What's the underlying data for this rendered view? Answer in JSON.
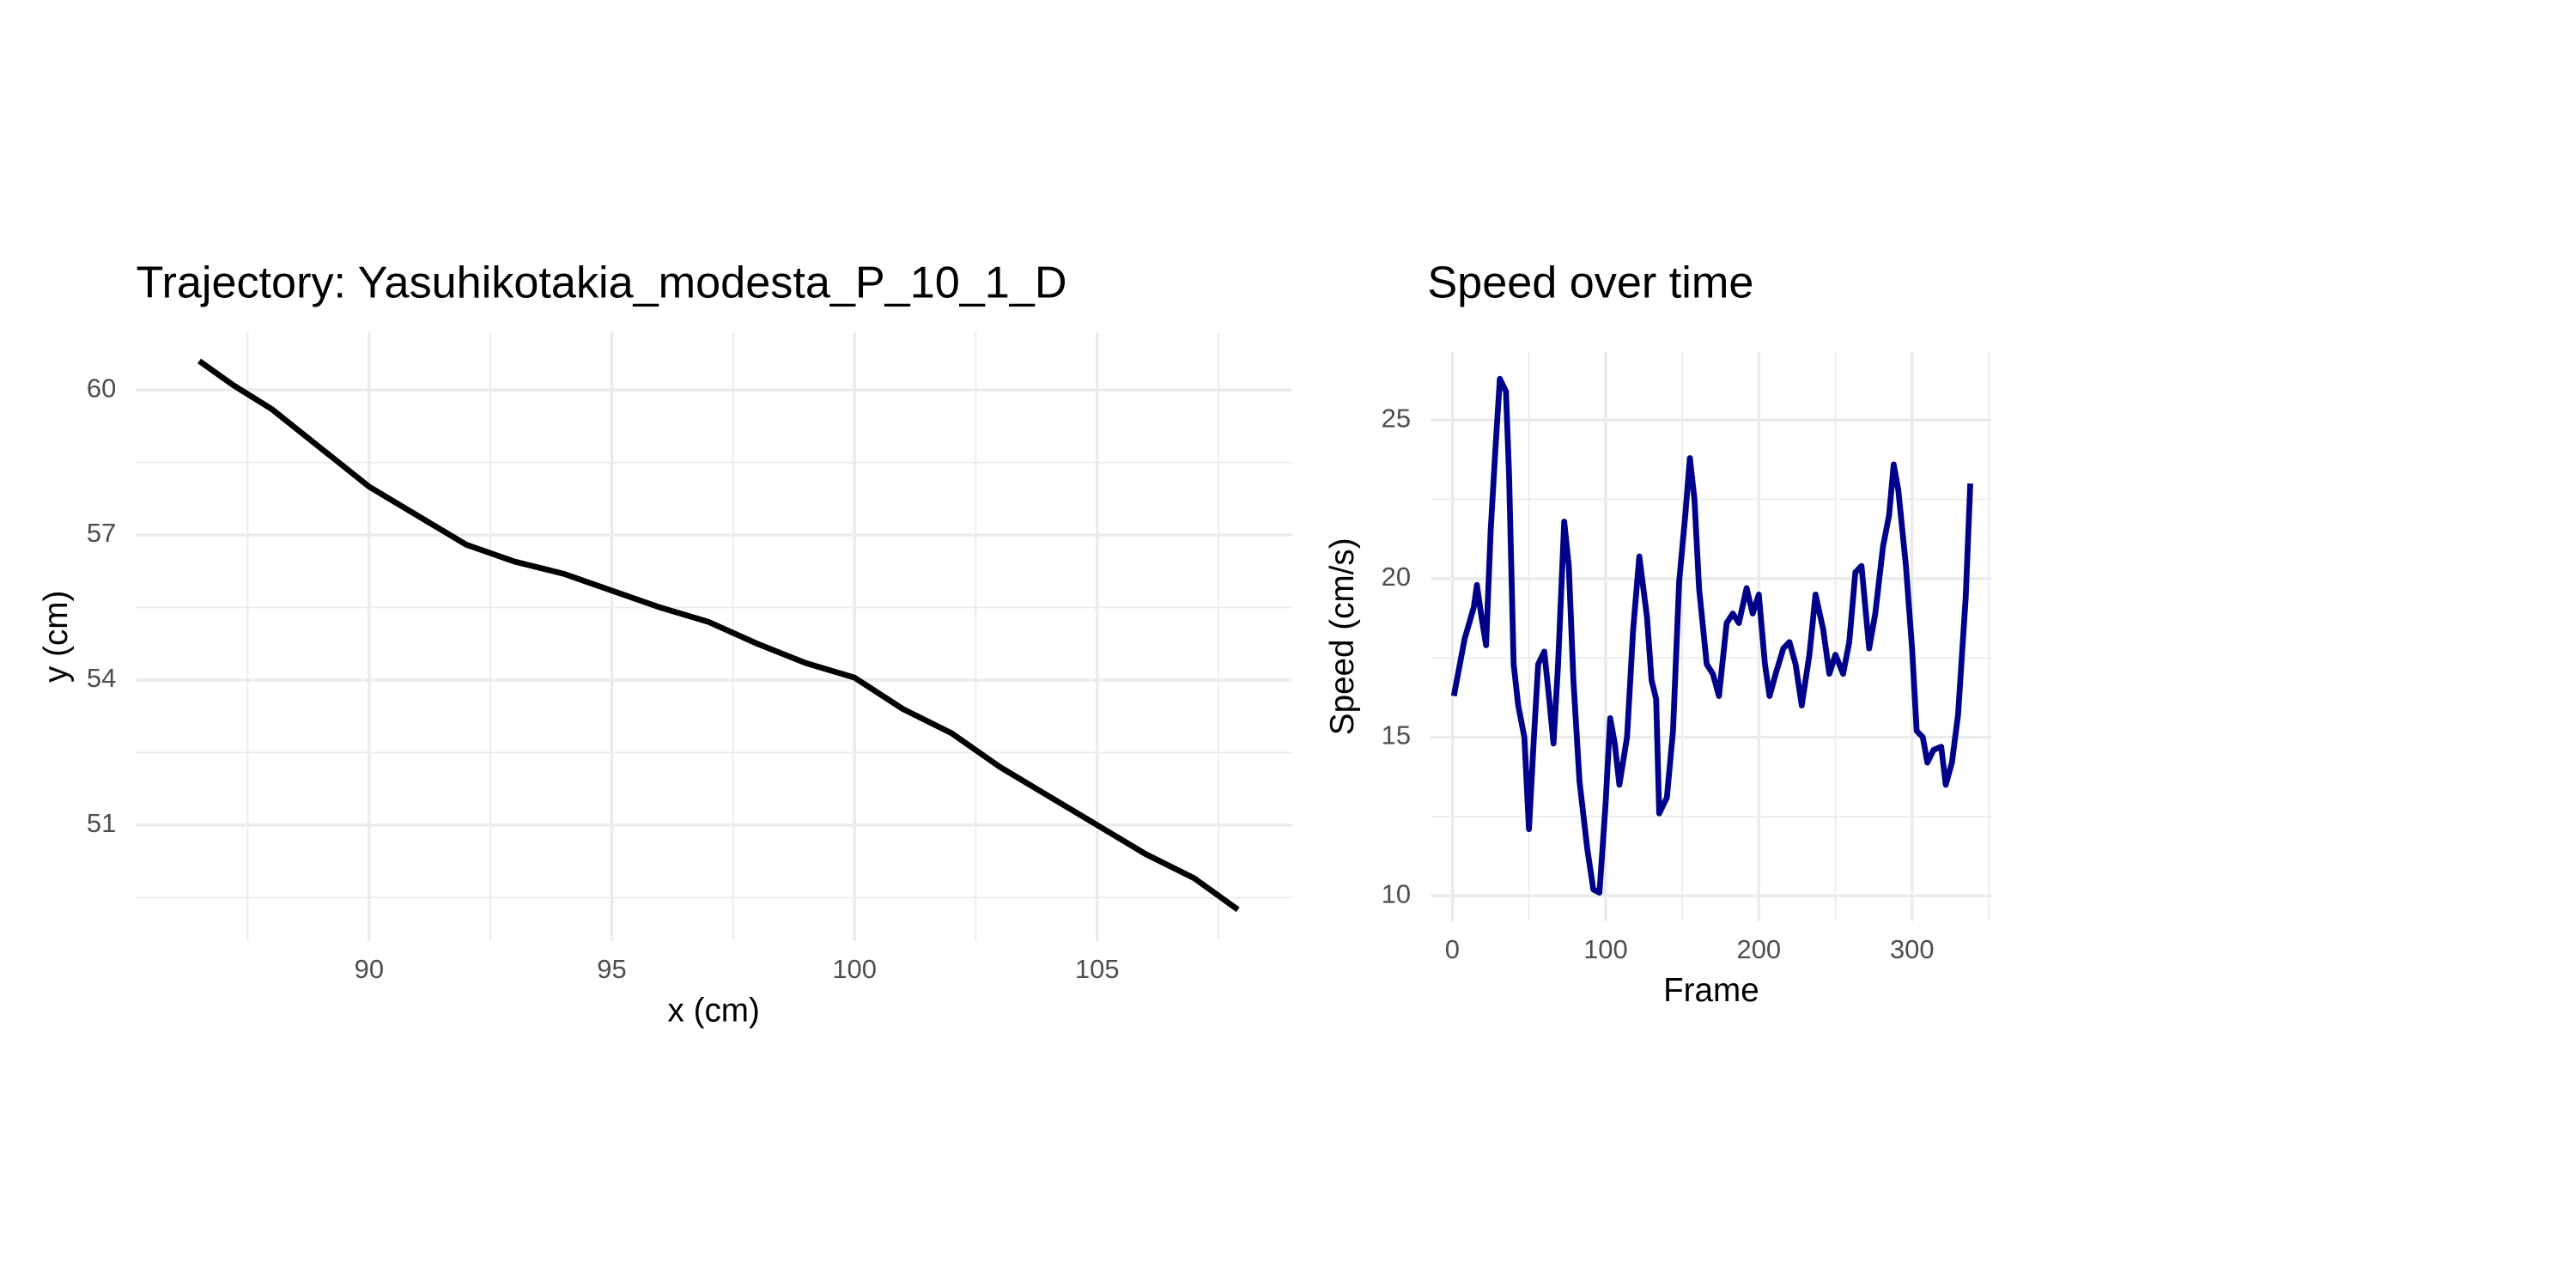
{
  "chart_data": [
    {
      "type": "line",
      "title": "Trajectory: Yasuhikotakia_modesta_P_10_1_D",
      "x_label": "x (cm)",
      "y_label": "y (cm)",
      "x": [
        86.5,
        87.2,
        88,
        89,
        90,
        91,
        92,
        93,
        94,
        95,
        96,
        97,
        98,
        99,
        100,
        101,
        102,
        103,
        104,
        105,
        106,
        107,
        107.9
      ],
      "series": [
        {
          "color": "#000000",
          "values": [
            60.6,
            60.1,
            59.6,
            58.8,
            58.0,
            57.4,
            56.8,
            56.45,
            56.2,
            55.85,
            55.5,
            55.2,
            54.75,
            54.35,
            54.05,
            53.4,
            52.9,
            52.2,
            51.6,
            51.0,
            50.4,
            49.9,
            49.25
          ]
        }
      ],
      "xlim": [
        85.2,
        109.0
      ],
      "xticks": [
        90,
        95,
        100,
        105
      ],
      "ylim": [
        48.6,
        61.2
      ],
      "yticks": [
        51,
        54,
        57,
        60
      ],
      "grid": true
    },
    {
      "type": "line",
      "title": "Speed over time",
      "x_label": "Frame",
      "y_label": "Speed (cm/s)",
      "x": [
        1,
        8,
        14,
        16,
        19,
        22,
        25,
        28,
        31,
        35,
        37,
        40,
        43,
        47,
        50,
        53,
        56,
        60,
        63,
        66,
        69,
        73,
        76,
        79,
        83,
        88,
        92,
        96,
        100,
        103,
        106,
        109,
        114,
        118,
        122,
        127,
        130,
        133,
        135,
        140,
        144,
        148,
        152,
        155,
        158,
        161,
        166,
        170,
        174,
        179,
        183,
        187,
        192,
        196,
        200,
        204,
        207,
        211,
        216,
        220,
        224,
        228,
        233,
        237,
        242,
        246,
        250,
        255,
        259,
        263,
        267,
        272,
        276,
        281,
        285,
        288,
        291,
        296,
        300,
        303,
        307,
        310,
        314,
        319,
        322,
        326,
        330,
        335,
        338
      ],
      "series": [
        {
          "color": "#00008b",
          "values": [
            16.3,
            18.1,
            19.1,
            19.8,
            18.8,
            17.9,
            21.5,
            24,
            26.3,
            25.9,
            23.3,
            17.3,
            16,
            15,
            12.1,
            14.8,
            17.3,
            17.7,
            16.3,
            14.8,
            17.3,
            21.8,
            20.4,
            16.8,
            13.6,
            11.5,
            10.2,
            10.1,
            12.9,
            15.6,
            14.8,
            13.5,
            15,
            18.4,
            20.7,
            18.8,
            16.8,
            16.2,
            12.6,
            13.1,
            15.2,
            19.9,
            22,
            23.8,
            22.5,
            19.7,
            17.3,
            17,
            16.3,
            18.6,
            18.9,
            18.6,
            19.7,
            18.9,
            19.5,
            17.3,
            16.3,
            17,
            17.8,
            18,
            17.3,
            16,
            17.6,
            19.5,
            18.4,
            17,
            17.6,
            17,
            18,
            20.2,
            20.4,
            17.8,
            18.9,
            21,
            22,
            23.6,
            22.8,
            20.4,
            17.8,
            15.2,
            15,
            14.2,
            14.6,
            14.7,
            13.5,
            14.2,
            15.7,
            19.4,
            23
          ]
        }
      ],
      "xlim": [
        -14.1,
        352
      ],
      "xticks": [
        0,
        100,
        200,
        300
      ],
      "ylim": [
        9.2,
        27.15
      ],
      "yticks": [
        10,
        15,
        20,
        25
      ],
      "grid": true
    }
  ]
}
